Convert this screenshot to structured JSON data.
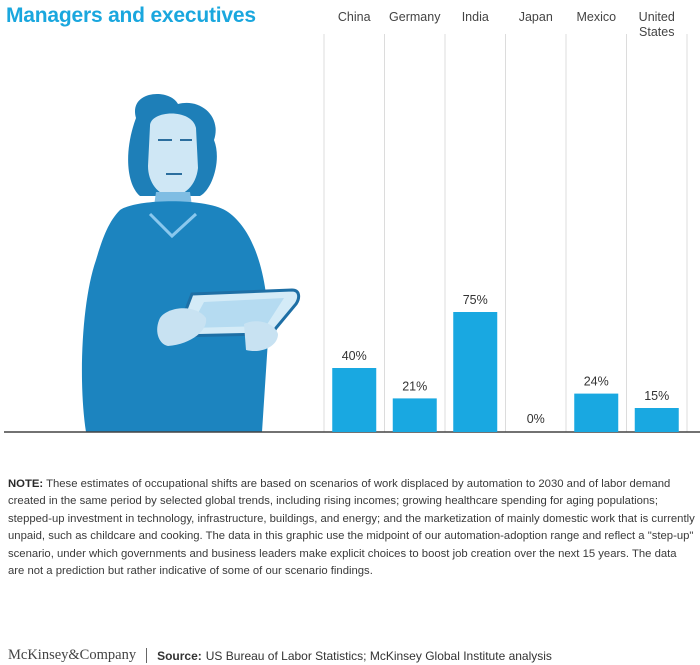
{
  "title": "Managers and executives",
  "chart_data": {
    "type": "bar",
    "categories": [
      "China",
      "Germany",
      "India",
      "Japan",
      "Mexico",
      "United States"
    ],
    "values": [
      40,
      21,
      75,
      0,
      24,
      15
    ],
    "value_labels": [
      "40%",
      "21%",
      "75%",
      "0%",
      "24%",
      "15%"
    ],
    "ylim": [
      0,
      100
    ],
    "bar_color": "#19a8e1",
    "title": "Managers and executives",
    "xlabel": "",
    "ylabel": ""
  },
  "illustration": {
    "icon": "manager-with-tablet-illustration",
    "color": "#1c84bf"
  },
  "note": {
    "label": "NOTE:",
    "text": " These estimates of occupational shifts are based on scenarios of work displaced by automation to 2030 and of labor demand created in the same period by selected global trends, including rising incomes; growing healthcare spending for aging populations; stepped-up investment in technology, infrastructure, buildings, and energy; and the marketization of mainly domestic work that is currently unpaid, such as childcare and cooking. The data in this graphic use the midpoint of our automation-adoption range and reflect a \"step-up\" scenario, under which governments and business leaders make explicit choices to boost job creation over the next 15 years. The data are not a prediction but rather indicative of some of our scenario findings."
  },
  "footer": {
    "brand": "McKinsey&Company",
    "source_label": "Source:",
    "source_text": "US Bureau of Labor Statistics; McKinsey Global Institute analysis"
  }
}
